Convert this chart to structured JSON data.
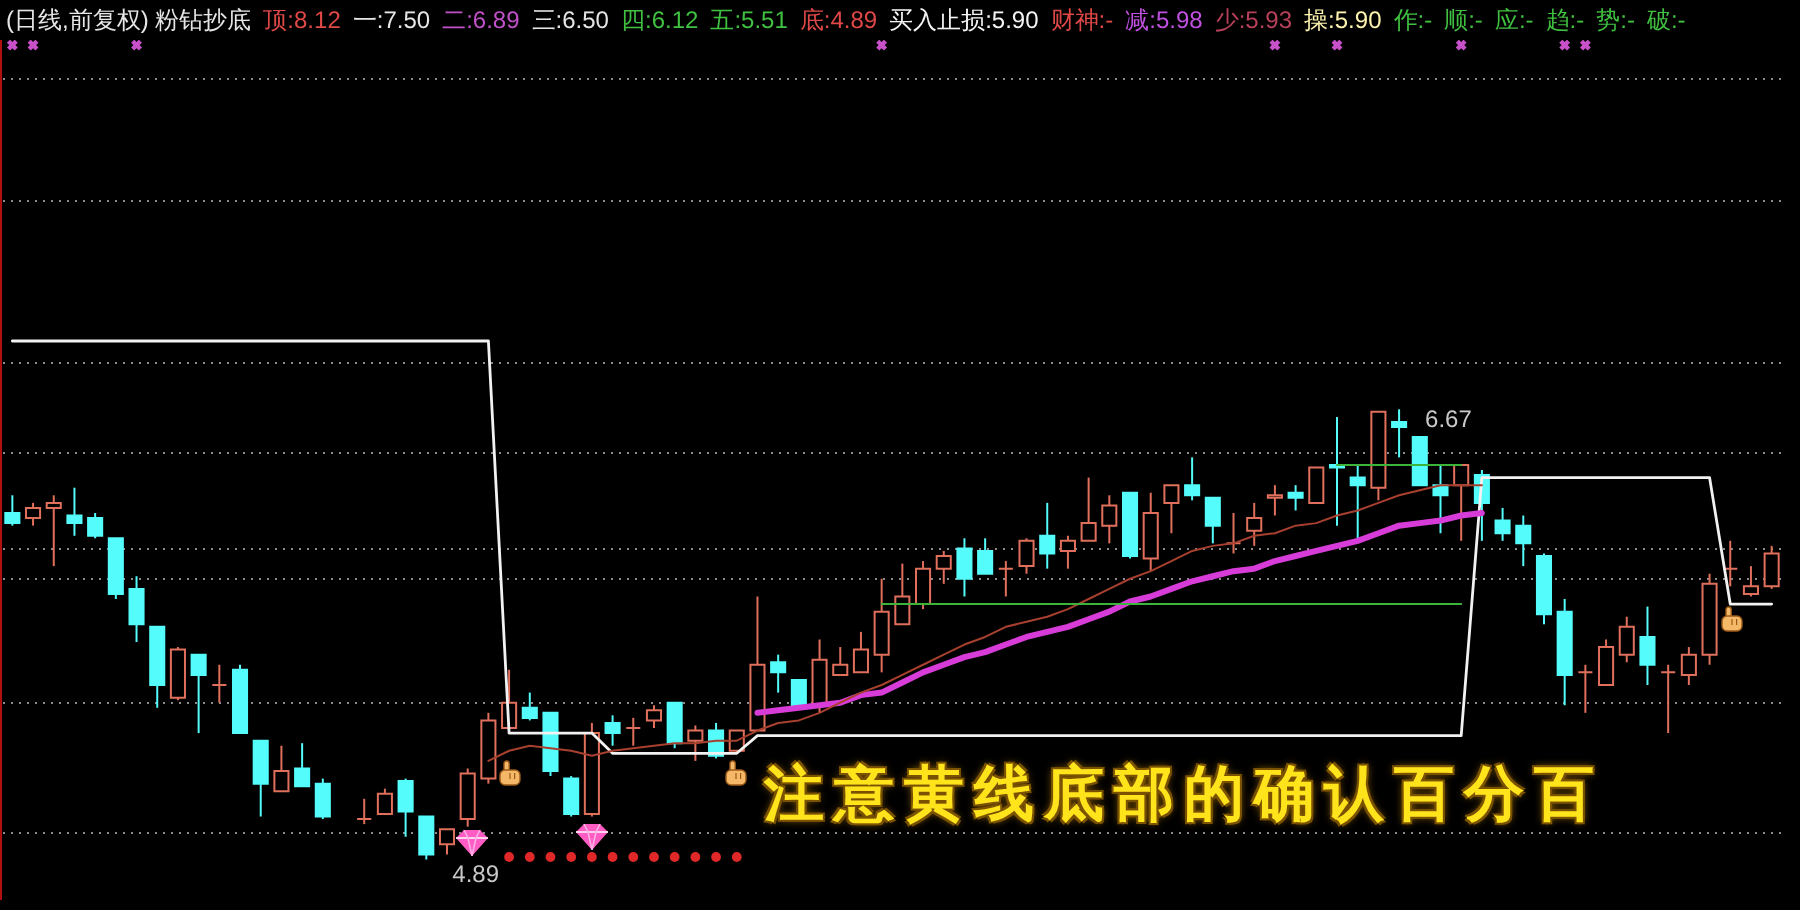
{
  "chart_data": {
    "type": "candlestick",
    "title": "(日线,前复权) 粉钻抄底",
    "annotations": [
      "顶:8.12",
      "一:7.50",
      "二:6.89",
      "三:6.50",
      "四:6.12",
      "五:5.51",
      "底:4.89",
      "买入止损:5.90",
      "财神:-",
      "减:5.98",
      "少:5.93",
      "操:5.90",
      "作:-",
      "顺:-",
      "应:-",
      "趋:-",
      "势:-",
      "破:-",
      "注意黄线底部的确认百分百"
    ],
    "categories": [
      null,
      null,
      null,
      null,
      null,
      null,
      null,
      null,
      null,
      null,
      null,
      null,
      null,
      null,
      null,
      null,
      null,
      null,
      null,
      null,
      null,
      null,
      null,
      null,
      null,
      null,
      null,
      null,
      null,
      null,
      null,
      null,
      null,
      null,
      null,
      null,
      null,
      null,
      null,
      null,
      null,
      null,
      null,
      null,
      null,
      null,
      null,
      null,
      null,
      null,
      null,
      null,
      null,
      null,
      null,
      null,
      null,
      null,
      null,
      null,
      null,
      null,
      null,
      null,
      null,
      null,
      null,
      null,
      null,
      null,
      null,
      null,
      null,
      null,
      null,
      null,
      null,
      null,
      null,
      null,
      null,
      null,
      null,
      null,
      null,
      null
    ],
    "ohlc": [
      [
        6.26,
        6.33,
        6.21,
        6.22
      ],
      [
        6.24,
        6.3,
        6.21,
        6.28
      ],
      [
        6.28,
        6.33,
        6.05,
        6.3
      ],
      [
        6.25,
        6.36,
        6.17,
        6.22
      ],
      [
        6.24,
        6.26,
        6.16,
        6.17
      ],
      [
        6.16,
        6.16,
        5.92,
        5.94
      ],
      [
        5.96,
        6.01,
        5.75,
        5.82
      ],
      [
        5.81,
        5.81,
        5.49,
        5.58
      ],
      [
        5.53,
        5.73,
        5.52,
        5.72
      ],
      [
        5.7,
        5.7,
        5.39,
        5.62
      ],
      [
        5.58,
        5.66,
        5.51,
        5.58
      ],
      [
        5.64,
        5.66,
        5.39,
        5.39
      ],
      [
        5.36,
        5.36,
        5.06,
        5.19
      ],
      [
        5.16,
        5.34,
        5.16,
        5.24
      ],
      [
        5.25,
        5.35,
        5.18,
        5.18
      ],
      [
        5.19,
        5.21,
        5.05,
        5.06
      ],
      null,
      [
        5.05,
        5.13,
        5.03,
        5.05
      ],
      [
        5.07,
        5.17,
        5.07,
        5.15
      ],
      [
        5.2,
        5.21,
        4.98,
        5.08
      ],
      [
        5.06,
        5.06,
        4.89,
        4.91
      ],
      [
        4.95,
        5.01,
        4.91,
        5.01
      ],
      [
        5.05,
        5.25,
        5.02,
        5.23
      ],
      [
        5.21,
        5.47,
        5.19,
        5.44
      ],
      [
        5.41,
        5.64,
        5.4,
        5.51
      ],
      [
        5.49,
        5.55,
        5.44,
        5.45
      ],
      [
        5.47,
        5.47,
        5.22,
        5.24
      ],
      [
        5.21,
        5.22,
        5.06,
        5.07
      ],
      [
        5.07,
        5.43,
        5.06,
        5.39
      ],
      [
        5.43,
        5.46,
        5.34,
        5.39
      ],
      [
        5.41,
        5.45,
        5.34,
        5.41
      ],
      [
        5.44,
        5.5,
        5.41,
        5.48
      ],
      [
        5.51,
        5.51,
        5.33,
        5.35
      ],
      [
        5.36,
        5.42,
        5.28,
        5.4
      ],
      [
        5.4,
        5.43,
        5.29,
        5.3
      ],
      [
        5.32,
        5.4,
        5.31,
        5.4
      ],
      [
        5.4,
        5.93,
        5.4,
        5.66
      ],
      [
        5.67,
        5.7,
        5.55,
        5.63
      ],
      [
        5.6,
        5.6,
        5.49,
        5.49
      ],
      [
        5.5,
        5.76,
        5.47,
        5.68
      ],
      [
        5.62,
        5.73,
        5.62,
        5.66
      ],
      [
        5.63,
        5.79,
        5.63,
        5.72
      ],
      [
        5.7,
        6.0,
        5.63,
        5.87
      ],
      [
        5.82,
        6.06,
        5.82,
        5.93
      ],
      [
        5.9,
        6.07,
        5.88,
        6.04
      ],
      [
        6.04,
        6.11,
        5.98,
        6.09
      ],
      [
        6.12,
        6.16,
        5.93,
        6.0
      ],
      [
        6.11,
        6.16,
        6.02,
        6.02
      ],
      [
        6.04,
        6.07,
        5.93,
        6.04
      ],
      [
        6.05,
        6.16,
        6.02,
        6.15
      ],
      [
        6.17,
        6.3,
        6.04,
        6.1
      ],
      [
        6.11,
        6.17,
        6.04,
        6.15
      ],
      [
        6.15,
        6.4,
        6.15,
        6.22
      ],
      [
        6.21,
        6.33,
        6.14,
        6.29
      ],
      [
        6.34,
        6.34,
        6.08,
        6.09
      ],
      [
        6.08,
        6.34,
        6.03,
        6.26
      ],
      [
        6.3,
        6.37,
        6.18,
        6.37
      ],
      [
        6.37,
        6.48,
        6.31,
        6.33
      ],
      [
        6.32,
        6.32,
        6.14,
        6.21
      ],
      [
        6.14,
        6.26,
        6.1,
        6.14
      ],
      [
        6.19,
        6.3,
        6.13,
        6.24
      ],
      [
        6.32,
        6.37,
        6.25,
        6.33
      ],
      [
        6.34,
        6.37,
        6.27,
        6.32
      ],
      [
        6.3,
        6.44,
        6.3,
        6.44
      ],
      [
        6.45,
        6.64,
        6.21,
        6.44
      ],
      [
        6.4,
        6.45,
        6.15,
        6.37
      ],
      [
        6.36,
        6.66,
        6.31,
        6.66
      ],
      [
        6.62,
        6.67,
        6.48,
        6.6
      ],
      [
        6.56,
        6.56,
        6.37,
        6.37
      ],
      [
        6.37,
        6.45,
        6.18,
        6.33
      ],
      [
        6.37,
        6.45,
        6.15,
        6.45
      ],
      [
        6.41,
        6.43,
        6.15,
        6.3
      ],
      [
        6.23,
        6.28,
        6.15,
        6.18
      ],
      [
        6.21,
        6.25,
        6.05,
        6.14
      ],
      [
        6.09,
        6.1,
        5.82,
        5.86
      ],
      [
        5.87,
        5.92,
        5.5,
        5.62
      ],
      [
        5.63,
        5.66,
        5.47,
        5.63
      ],
      [
        5.58,
        5.76,
        5.58,
        5.73
      ],
      [
        5.7,
        5.85,
        5.67,
        5.81
      ],
      [
        5.77,
        5.89,
        5.58,
        5.66
      ],
      [
        5.63,
        5.66,
        5.39,
        5.63
      ],
      [
        5.62,
        5.73,
        5.58,
        5.7
      ],
      [
        5.7,
        6.02,
        5.66,
        5.98
      ],
      [
        6.04,
        6.15,
        5.97,
        6.04
      ],
      [
        5.94,
        6.05,
        5.93,
        5.97
      ],
      [
        5.97,
        6.13,
        5.96,
        6.1
      ]
    ],
    "value_labels": [
      null,
      null,
      null,
      null,
      null,
      null,
      null,
      null,
      null,
      null,
      null,
      null,
      null,
      null,
      null,
      null,
      null,
      null,
      null,
      null,
      "4.89",
      null,
      null,
      null,
      null,
      null,
      null,
      null,
      null,
      null,
      null,
      null,
      null,
      null,
      null,
      null,
      null,
      null,
      null,
      null,
      null,
      null,
      null,
      null,
      null,
      null,
      null,
      null,
      null,
      null,
      null,
      null,
      null,
      null,
      null,
      null,
      null,
      null,
      null,
      null,
      null,
      null,
      null,
      null,
      null,
      null,
      null,
      "6.67",
      null,
      null,
      null,
      null,
      null,
      null,
      null,
      null,
      null,
      null,
      null,
      null,
      null,
      null,
      null,
      null,
      null,
      null
    ],
    "colors": [
      "#54fcfc",
      "#e0705c",
      "#e0705c",
      "#54fcfc",
      "#54fcfc",
      "#54fcfc",
      "#54fcfc",
      "#54fcfc",
      "#e0705c",
      "#54fcfc",
      "#e0705c",
      "#54fcfc",
      "#54fcfc",
      "#e0705c",
      "#54fcfc",
      "#54fcfc",
      null,
      "#e0705c",
      "#e0705c",
      "#54fcfc",
      "#54fcfc",
      "#e0705c",
      "#e0705c",
      "#e0705c",
      "#e0705c",
      "#54fcfc",
      "#54fcfc",
      "#54fcfc",
      "#e0705c",
      "#54fcfc",
      "#e0705c",
      "#e0705c",
      "#54fcfc",
      "#e0705c",
      "#54fcfc",
      "#e0705c",
      "#e0705c",
      "#54fcfc",
      "#54fcfc",
      "#e0705c",
      "#e0705c",
      "#e0705c",
      "#e0705c",
      "#e0705c",
      "#e0705c",
      "#e0705c",
      "#54fcfc",
      "#54fcfc",
      "#e0705c",
      "#e0705c",
      "#54fcfc",
      "#e0705c",
      "#e0705c",
      "#e0705c",
      "#54fcfc",
      "#e0705c",
      "#e0705c",
      "#54fcfc",
      "#54fcfc",
      "#e0705c",
      "#e0705c",
      "#e0705c",
      "#54fcfc",
      "#e0705c",
      "#54fcfc",
      "#54fcfc",
      "#e0705c",
      "#54fcfc",
      "#54fcfc",
      "#54fcfc",
      "#e0705c",
      "#54fcfc",
      "#54fcfc",
      "#54fcfc",
      "#54fcfc",
      "#54fcfc",
      "#e0705c",
      "#e0705c",
      "#e0705c",
      "#54fcfc",
      "#e0705c",
      "#e0705c",
      "#e0705c",
      "#e0705c",
      "#e0705c",
      "#e0705c"
    ],
    "series": [
      {
        "type": "line",
        "color": "#f2f2f2",
        "values": [
          6.94,
          6.94,
          6.94,
          6.94,
          6.94,
          6.94,
          6.94,
          6.94,
          6.94,
          6.94,
          6.94,
          6.94,
          6.94,
          6.94,
          6.94,
          6.94,
          6.94,
          6.94,
          6.94,
          6.94,
          6.94,
          6.94,
          6.94,
          6.94,
          5.39,
          5.39,
          5.39,
          5.39,
          5.39,
          5.31,
          5.31,
          5.31,
          5.31,
          5.31,
          5.31,
          5.31,
          5.38,
          5.38,
          5.38,
          5.38,
          5.38,
          5.38,
          5.38,
          5.38,
          5.38,
          5.38,
          5.38,
          5.38,
          5.38,
          5.38,
          5.38,
          5.38,
          5.38,
          5.38,
          5.38,
          5.38,
          5.38,
          5.38,
          5.38,
          5.38,
          5.38,
          5.38,
          5.38,
          5.38,
          5.38,
          5.38,
          5.38,
          5.38,
          5.38,
          5.38,
          5.38,
          6.4,
          6.4,
          6.4,
          6.4,
          6.4,
          6.4,
          6.4,
          6.4,
          6.4,
          6.4,
          6.4,
          6.4,
          5.9,
          5.9,
          5.9
        ]
      },
      {
        "type": "line",
        "color": "#d83cd8",
        "values": [
          null,
          null,
          null,
          null,
          null,
          null,
          null,
          null,
          null,
          null,
          null,
          null,
          null,
          null,
          null,
          null,
          null,
          null,
          null,
          null,
          null,
          null,
          null,
          null,
          null,
          null,
          null,
          null,
          null,
          null,
          null,
          null,
          null,
          null,
          null,
          null,
          5.47,
          5.48,
          5.49,
          5.5,
          5.51,
          5.54,
          5.55,
          5.59,
          5.63,
          5.66,
          5.69,
          5.71,
          5.74,
          5.77,
          5.79,
          5.81,
          5.84,
          5.87,
          5.91,
          5.93,
          5.96,
          5.99,
          6.01,
          6.03,
          6.04,
          6.07,
          6.09,
          6.11,
          6.13,
          6.15,
          6.18,
          6.21,
          6.22,
          6.23,
          6.25,
          6.26,
          null,
          null,
          null,
          null,
          null,
          null,
          null,
          null,
          null,
          null,
          null,
          null,
          null,
          null
        ]
      },
      {
        "type": "line",
        "color": "#a8402f",
        "values": [
          null,
          null,
          null,
          null,
          null,
          null,
          null,
          null,
          null,
          null,
          null,
          null,
          null,
          null,
          null,
          null,
          null,
          null,
          null,
          null,
          null,
          null,
          null,
          5.28,
          5.32,
          5.34,
          5.33,
          5.32,
          5.3,
          5.32,
          5.33,
          5.34,
          5.35,
          5.35,
          5.36,
          5.36,
          5.4,
          5.43,
          5.44,
          5.47,
          5.51,
          5.55,
          5.58,
          5.62,
          5.66,
          5.7,
          5.74,
          5.77,
          5.81,
          5.83,
          5.85,
          5.88,
          5.92,
          5.96,
          6.0,
          6.03,
          6.07,
          6.11,
          6.13,
          6.14,
          6.17,
          6.18,
          6.21,
          6.22,
          6.25,
          6.27,
          6.3,
          6.33,
          6.35,
          6.37,
          6.37,
          6.37,
          null,
          null,
          null,
          null,
          null,
          null,
          null,
          null,
          null,
          null,
          null,
          null,
          null,
          null
        ]
      },
      {
        "type": "line",
        "color": "#3cb43c",
        "values": [
          null,
          null,
          null,
          null,
          null,
          null,
          null,
          null,
          null,
          null,
          null,
          null,
          null,
          null,
          null,
          null,
          null,
          null,
          null,
          null,
          null,
          null,
          null,
          null,
          null,
          null,
          null,
          null,
          null,
          null,
          null,
          null,
          null,
          null,
          null,
          null,
          null,
          null,
          null,
          null,
          null,
          null,
          5.9,
          5.9,
          5.9,
          5.9,
          5.9,
          5.9,
          5.9,
          5.9,
          5.9,
          5.9,
          5.9,
          5.9,
          5.9,
          5.9,
          5.9,
          5.9,
          5.9,
          5.9,
          5.9,
          5.9,
          5.9,
          5.9,
          5.9,
          5.9,
          5.9,
          5.9,
          5.9,
          5.9,
          5.9,
          null,
          null,
          null,
          null,
          null,
          null,
          null,
          null,
          null,
          null,
          null,
          null,
          null,
          null,
          null
        ]
      },
      {
        "type": "line",
        "color": "#3cb43c",
        "values": [
          null,
          null,
          null,
          null,
          null,
          null,
          null,
          null,
          null,
          null,
          null,
          null,
          null,
          null,
          null,
          null,
          null,
          null,
          null,
          null,
          null,
          null,
          null,
          null,
          null,
          null,
          null,
          null,
          null,
          null,
          null,
          null,
          null,
          null,
          null,
          null,
          null,
          null,
          null,
          null,
          null,
          null,
          null,
          null,
          null,
          null,
          null,
          null,
          null,
          null,
          null,
          null,
          null,
          null,
          null,
          null,
          null,
          null,
          null,
          null,
          null,
          null,
          null,
          null,
          6.45,
          6.45,
          6.45,
          6.45,
          6.45,
          6.45,
          6.45,
          null,
          null,
          null,
          null,
          null,
          null,
          null,
          null,
          null,
          null,
          null,
          null,
          null,
          null,
          null
        ]
      },
      {
        "type": "scatter",
        "color": "#e02828",
        "marker": "circle",
        "values": [
          null,
          null,
          null,
          null,
          null,
          null,
          null,
          null,
          null,
          null,
          null,
          null,
          null,
          null,
          null,
          null,
          null,
          null,
          null,
          null,
          null,
          null,
          null,
          null,
          4.9,
          4.9,
          4.9,
          4.9,
          4.9,
          4.9,
          4.9,
          4.9,
          4.9,
          4.9,
          4.9,
          4.9,
          null,
          null,
          null,
          null,
          null,
          null,
          null,
          null,
          null,
          null,
          null,
          null,
          null,
          null,
          null,
          null,
          null,
          null,
          null,
          null,
          null,
          null,
          null,
          null,
          null,
          null,
          null,
          null,
          null,
          null,
          null,
          null,
          null,
          null,
          null,
          null,
          null,
          null,
          null,
          null,
          null,
          null,
          null,
          null,
          null,
          null,
          null,
          null,
          null,
          null
        ]
      },
      {
        "type": "scatter",
        "color": "#c850c8",
        "marker": "cross",
        "values": [
          8.11,
          8.11,
          null,
          null,
          null,
          null,
          8.11,
          null,
          null,
          null,
          null,
          null,
          null,
          null,
          null,
          null,
          null,
          null,
          null,
          null,
          null,
          null,
          null,
          null,
          null,
          null,
          null,
          null,
          null,
          null,
          null,
          null,
          null,
          null,
          null,
          null,
          null,
          null,
          null,
          null,
          null,
          null,
          8.11,
          null,
          null,
          null,
          null,
          null,
          null,
          null,
          null,
          null,
          null,
          null,
          null,
          null,
          null,
          null,
          null,
          null,
          null,
          8.11,
          null,
          null,
          8.11,
          null,
          null,
          null,
          null,
          null,
          8.11,
          null,
          null,
          null,
          null,
          8.11,
          8.11,
          null,
          null,
          null,
          null,
          null,
          null,
          null,
          null,
          null
        ]
      }
    ],
    "ylim": [
      4.73,
      8.13
    ],
    "yticks": [
      {
        "value": 5.0,
        "label": null
      },
      {
        "value": 5.51,
        "label": null
      },
      {
        "value": 6.0,
        "label": null
      },
      {
        "value": 6.12,
        "label": null
      },
      {
        "value": 6.5,
        "label": null
      },
      {
        "value": 6.86,
        "label": null
      },
      {
        "value": 7.5,
        "label": null
      },
      {
        "value": 7.98,
        "label": null
      }
    ],
    "grid": "y"
  }
}
